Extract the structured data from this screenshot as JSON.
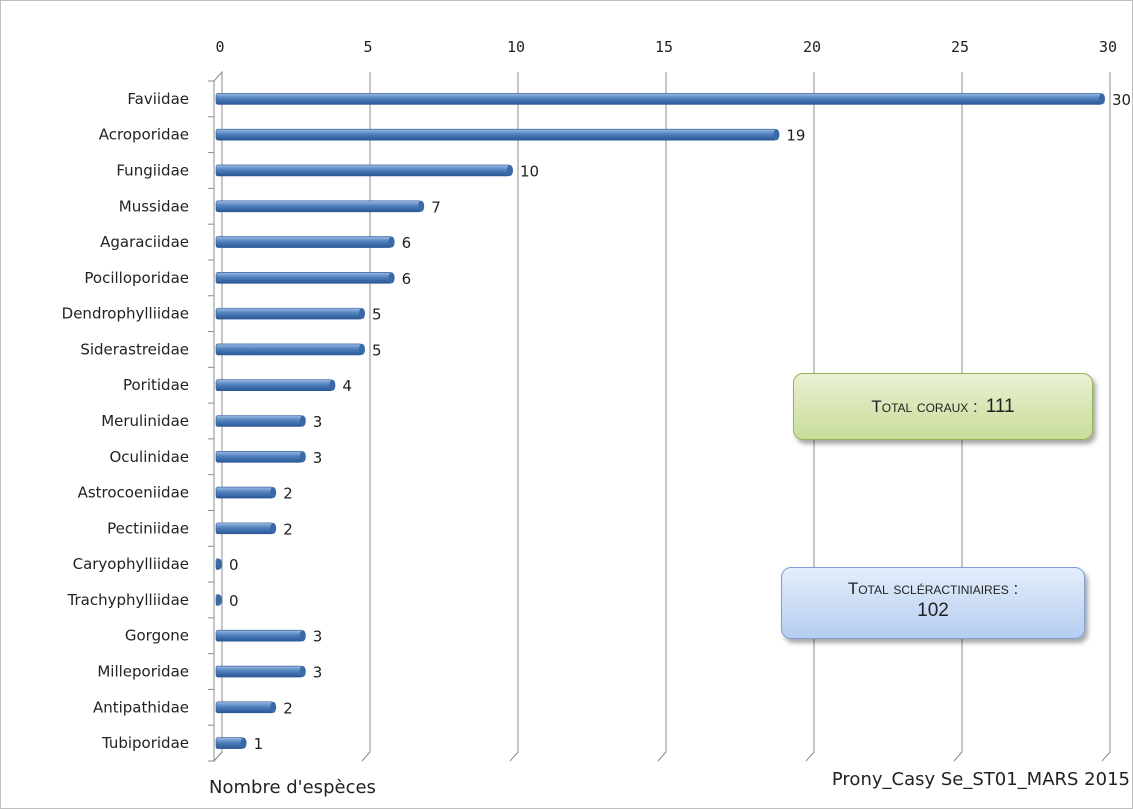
{
  "chart_data": {
    "type": "bar",
    "orientation": "horizontal",
    "categories": [
      "Faviidae",
      "Acroporidae",
      "Fungiidae",
      "Mussidae",
      "Agaraciidae",
      "Pocilloporidae",
      "Dendrophylliidae",
      "Siderastreidae",
      "Poritidae",
      "Merulinidae",
      "Oculinidae",
      "Astrocoeniidae",
      "Pectiniidae",
      "Caryophylliidae",
      "Trachyphylliidae",
      "Gorgone",
      "Milleporidae",
      "Antipathidae",
      "Tubiporidae"
    ],
    "values": [
      30,
      19,
      10,
      7,
      6,
      6,
      5,
      5,
      4,
      3,
      3,
      2,
      2,
      0,
      0,
      3,
      3,
      2,
      1
    ],
    "xlabel": "Nombre d'espèces",
    "source": "Prony_Casy Se_ST01_MARS 2015",
    "xlim": [
      0,
      30
    ],
    "xticks": [
      "0",
      "5",
      "10",
      "15",
      "20",
      "25",
      "30"
    ],
    "axis_position": "top",
    "grid": "vertical",
    "bar_color": "#4f81bd",
    "annotations": [
      {
        "label": "Total coraux :",
        "value": "111",
        "color": "#c9dc9a"
      },
      {
        "label": "Total scléractiniaires :",
        "value": "102",
        "color": "#b5cdf0"
      }
    ]
  }
}
